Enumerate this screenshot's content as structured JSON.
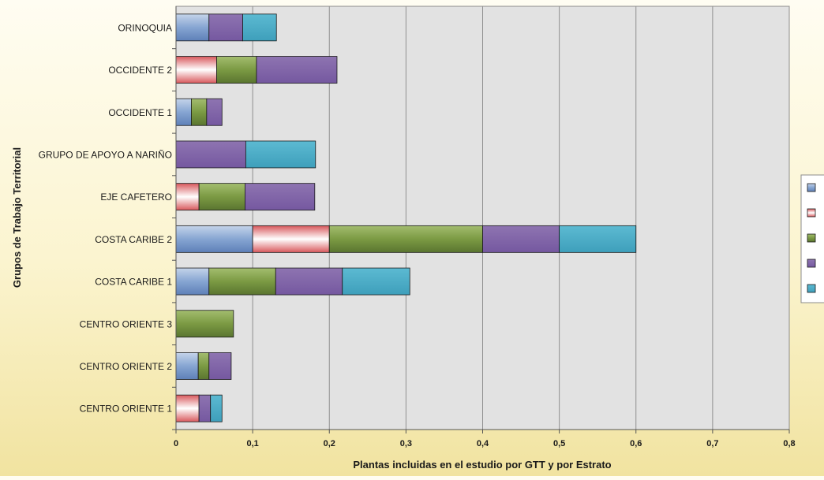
{
  "chart_data": {
    "type": "bar",
    "orientation": "horizontal",
    "stacked": true,
    "categories": [
      "CENTRO ORIENTE 1",
      "CENTRO ORIENTE 2",
      "CENTRO ORIENTE 3",
      "COSTA CARIBE 1",
      "COSTA CARIBE 2",
      "EJE CAFETERO",
      "GRUPO DE APOYO A NARIÑO",
      "OCCIDENTE 1",
      "OCCIDENTE 2",
      "ORINOQUIA"
    ],
    "series": [
      {
        "color": "#7c9ccc",
        "values": [
          0,
          0.029,
          0,
          0.043,
          0.1,
          0,
          0,
          0.02,
          0,
          0.043
        ]
      },
      {
        "color": "#e79b98",
        "values": [
          0.03,
          0,
          0,
          0,
          0.1,
          0.03,
          0,
          0,
          0.053,
          0
        ]
      },
      {
        "color": "#77953d",
        "values": [
          0,
          0.014,
          0.075,
          0.087,
          0.2,
          0.06,
          0,
          0.02,
          0.052,
          0
        ]
      },
      {
        "color": "#8064a2",
        "values": [
          0.015,
          0.029,
          0,
          0.087,
          0.1,
          0.091,
          0.091,
          0.02,
          0.105,
          0.044
        ]
      },
      {
        "color": "#4aacc6",
        "values": [
          0.015,
          0,
          0,
          0.088,
          0.1,
          0,
          0.091,
          0,
          0,
          0.044
        ]
      }
    ],
    "xlim": [
      0,
      0.8
    ],
    "xticks": [
      "0",
      "0,1",
      "0,2",
      "0,3",
      "0,4",
      "0,5",
      "0,6",
      "0,7",
      "0,8"
    ],
    "xlabel": "Plantas incluidas en el estudio por GTT y por Estrato",
    "ylabel": "Grupos de Trabajo Territorial",
    "grid": "vertical",
    "legend_position": "right"
  }
}
